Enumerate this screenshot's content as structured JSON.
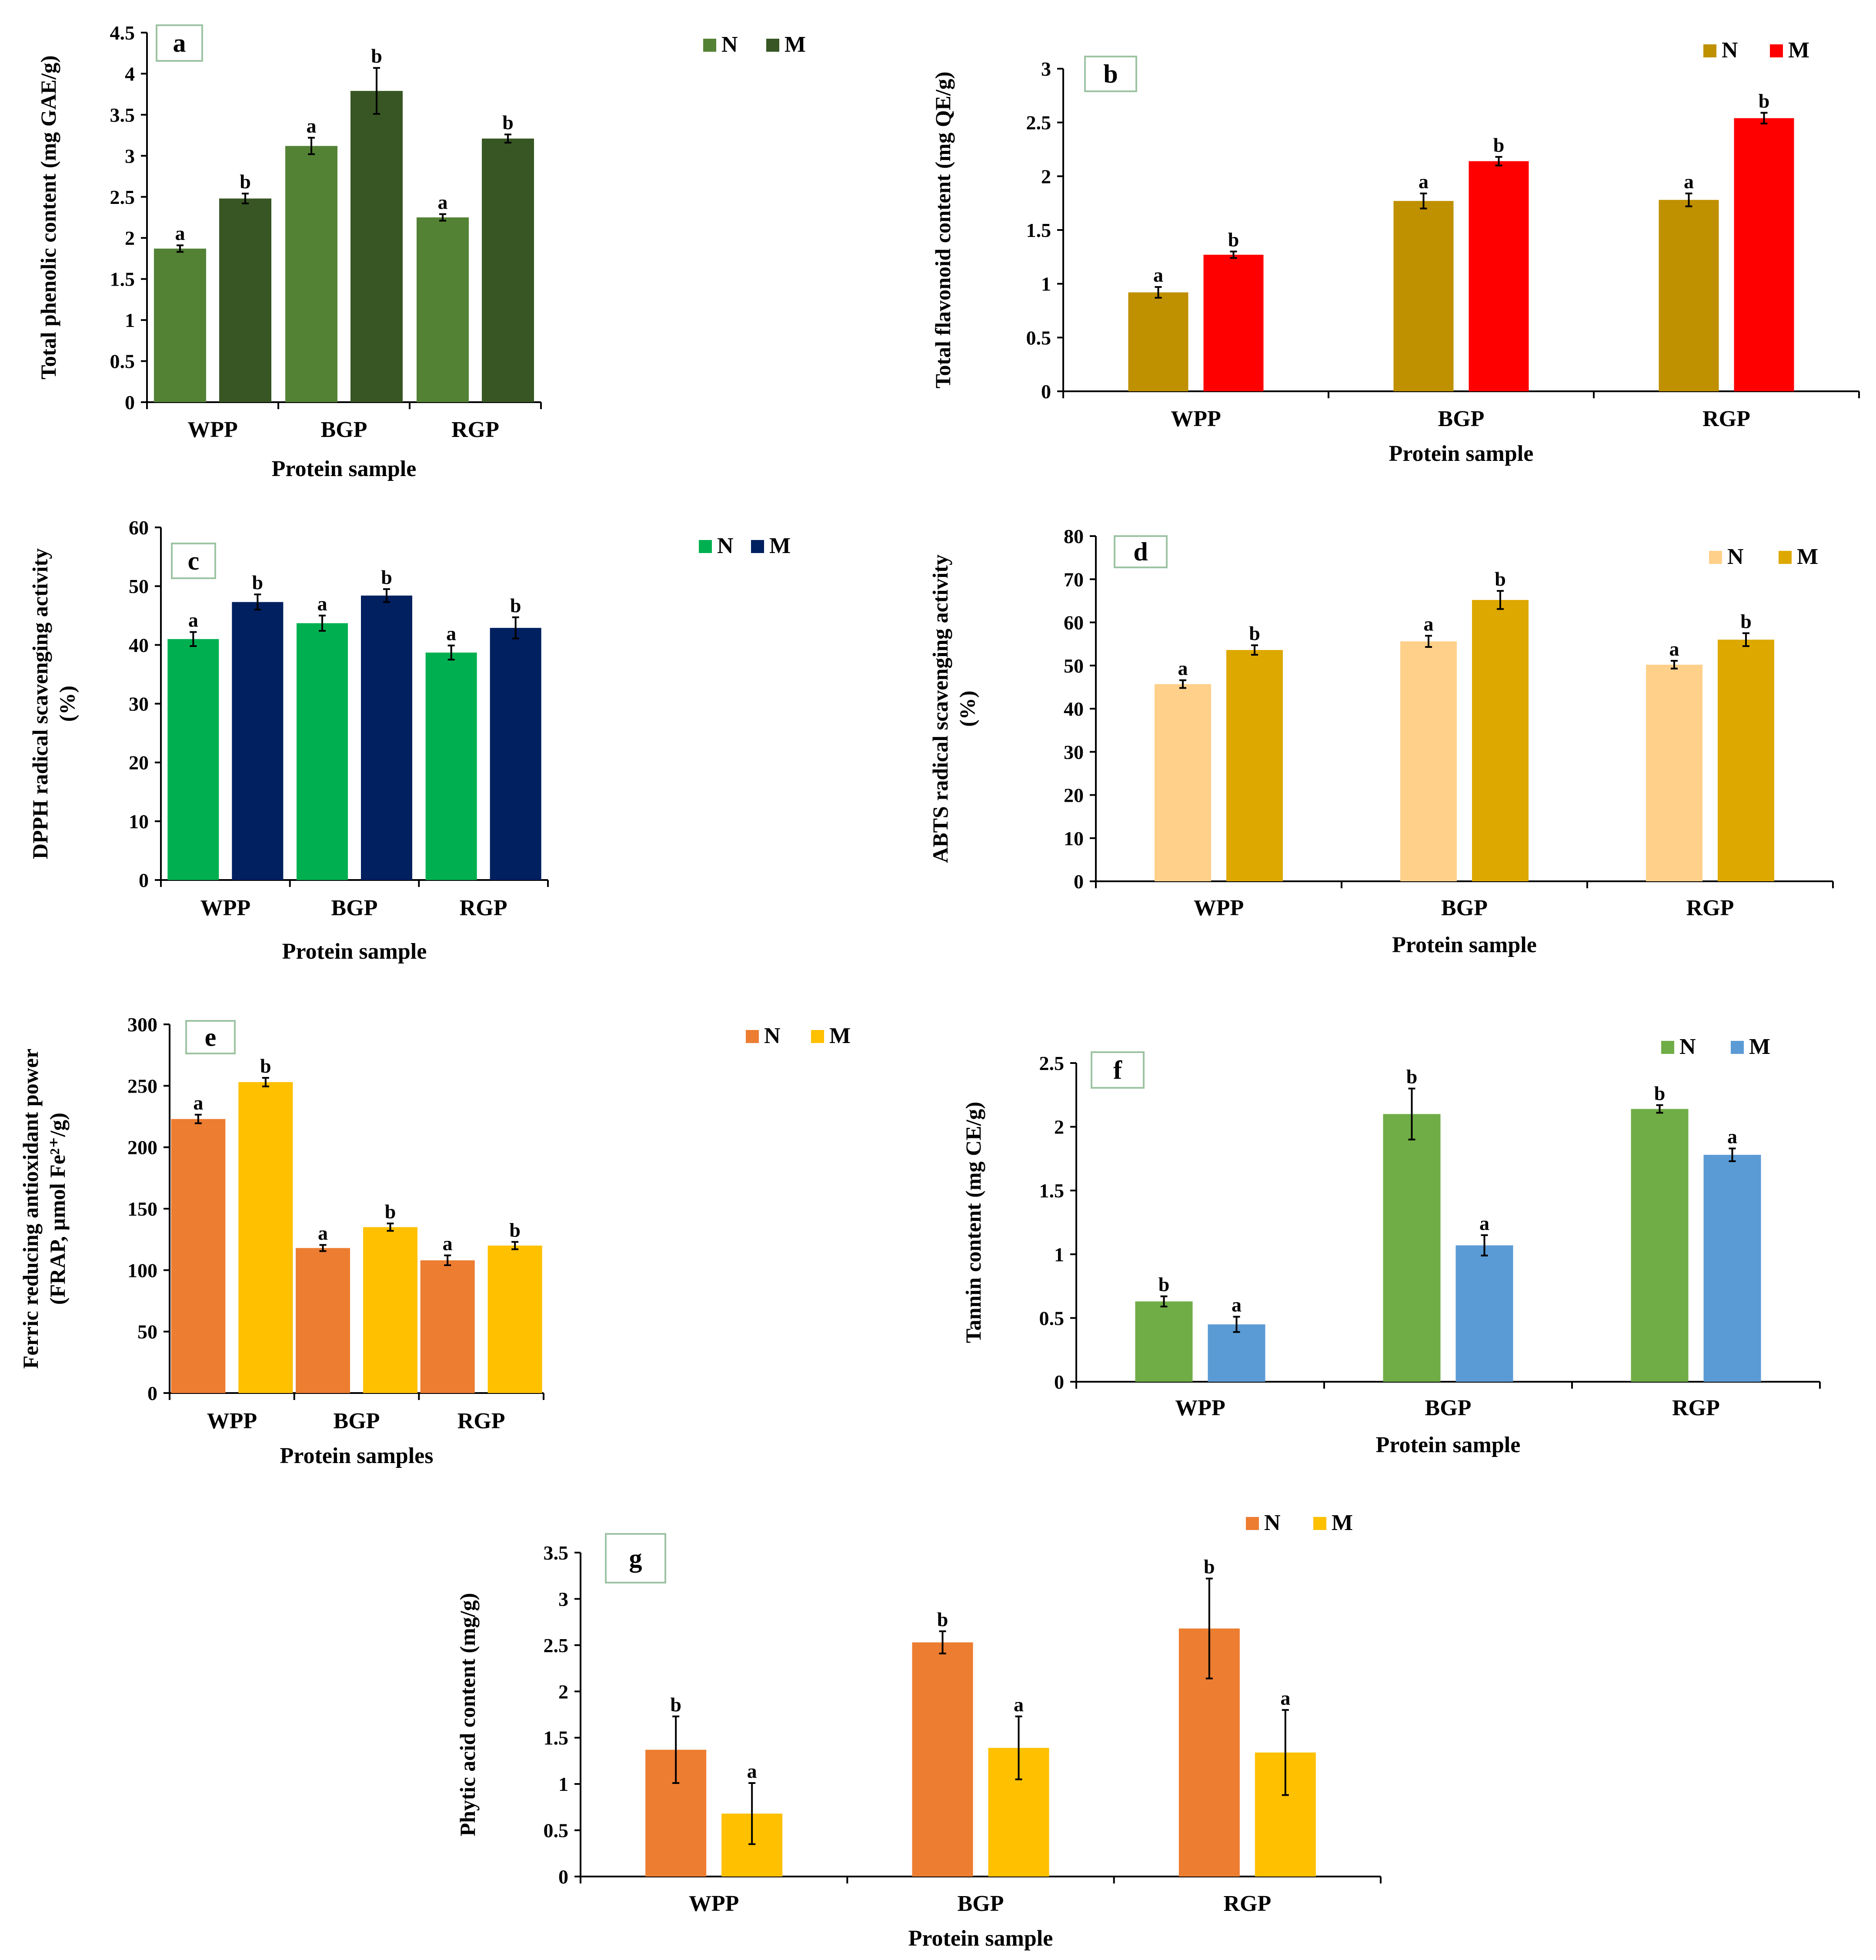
{
  "chart_data": [
    {
      "type": "bar",
      "panel_label": "a",
      "categories": [
        "WPP",
        "BGP",
        "RGP"
      ],
      "series": [
        {
          "name": "N",
          "color": "#548235",
          "values": [
            1.87,
            3.12,
            2.25
          ],
          "errors": [
            0.04,
            0.1,
            0.04
          ],
          "labels": [
            "a",
            "a",
            "a"
          ]
        },
        {
          "name": "M",
          "color": "#375623",
          "values": [
            2.48,
            3.79,
            3.21
          ],
          "errors": [
            0.06,
            0.28,
            0.05
          ],
          "labels": [
            "b",
            "b",
            "b"
          ]
        }
      ],
      "xlabel": "Protein sample",
      "ylabel": [
        "Total phenolic content (mg GAE/g)"
      ],
      "ylim": [
        0,
        4.5
      ],
      "yticks": [
        "0",
        "0.5",
        "1",
        "1.5",
        "2",
        "2.5",
        "3",
        "3.5",
        "4",
        "4.5"
      ],
      "legend_position": "top-right"
    },
    {
      "type": "bar",
      "panel_label": "b",
      "categories": [
        "WPP",
        "BGP",
        "RGP"
      ],
      "series": [
        {
          "name": "N",
          "color": "#BF9000",
          "values": [
            0.92,
            1.77,
            1.78
          ],
          "errors": [
            0.05,
            0.07,
            0.06
          ],
          "labels": [
            "a",
            "a",
            "a"
          ]
        },
        {
          "name": "M",
          "color": "#FF0000",
          "values": [
            1.27,
            2.14,
            2.54
          ],
          "errors": [
            0.03,
            0.04,
            0.05
          ],
          "labels": [
            "b",
            "b",
            "b"
          ]
        }
      ],
      "xlabel": "Protein sample",
      "ylabel": [
        "Total flavonoid content (mg QE/g)"
      ],
      "ylim": [
        0,
        3
      ],
      "yticks": [
        "0",
        "0.5",
        "1",
        "1.5",
        "2",
        "2.5",
        "3"
      ],
      "legend_position": "top-right"
    },
    {
      "type": "bar",
      "panel_label": "c",
      "categories": [
        "WPP",
        "BGP",
        "RGP"
      ],
      "series": [
        {
          "name": "N",
          "color": "#00B050",
          "values": [
            41,
            43.7,
            38.7
          ],
          "errors": [
            1.2,
            1.3,
            1.2
          ],
          "labels": [
            "a",
            "a",
            "a"
          ]
        },
        {
          "name": "M",
          "color": "#002060",
          "values": [
            47.3,
            48.4,
            42.9
          ],
          "errors": [
            1.3,
            1.1,
            1.8
          ],
          "labels": [
            "b",
            "b",
            "b"
          ]
        }
      ],
      "xlabel": "Protein sample",
      "ylabel": [
        "DPPH radical scavenging activity",
        "(%)"
      ],
      "ylim": [
        0,
        60
      ],
      "yticks": [
        "0",
        "10",
        "20",
        "30",
        "40",
        "50",
        "60"
      ],
      "legend_position": "top-right"
    },
    {
      "type": "bar",
      "panel_label": "d",
      "categories": [
        "WPP",
        "BGP",
        "RGP"
      ],
      "series": [
        {
          "name": "N",
          "color": "#FFD08A",
          "values": [
            45.7,
            55.6,
            50.2
          ],
          "errors": [
            0.9,
            1.3,
            0.9
          ],
          "labels": [
            "a",
            "a",
            "a"
          ]
        },
        {
          "name": "M",
          "color": "#DDA800",
          "values": [
            53.6,
            65.2,
            56
          ],
          "errors": [
            1.1,
            2.1,
            1.5
          ],
          "labels": [
            "b",
            "b",
            "b"
          ]
        }
      ],
      "xlabel": "Protein sample",
      "ylabel": [
        "ABTS radical scavenging activity",
        "(%)"
      ],
      "ylim": [
        0,
        80
      ],
      "yticks": [
        "0",
        "10",
        "20",
        "30",
        "40",
        "50",
        "60",
        "70",
        "80"
      ],
      "legend_position": "top-right"
    },
    {
      "type": "bar",
      "panel_label": "e",
      "categories": [
        "WPP",
        "BGP",
        "RGP"
      ],
      "series": [
        {
          "name": "N",
          "color": "#ED7D31",
          "values": [
            223,
            118,
            108
          ],
          "errors": [
            3.5,
            2.5,
            4
          ],
          "labels": [
            "a",
            "a",
            "a"
          ]
        },
        {
          "name": "M",
          "color": "#FFC000",
          "values": [
            253,
            135,
            120
          ],
          "errors": [
            3.5,
            3,
            3
          ],
          "labels": [
            "b",
            "b",
            "b"
          ]
        }
      ],
      "xlabel": "Protein samples",
      "ylabel": [
        "Ferric reducing antioxidant power",
        "(FRAP, µmol Fe²⁺/g)"
      ],
      "ylim": [
        0,
        300
      ],
      "yticks": [
        "0",
        "50",
        "100",
        "150",
        "200",
        "250",
        "300"
      ],
      "legend_position": "top-right"
    },
    {
      "type": "bar",
      "panel_label": "f",
      "categories": [
        "WPP",
        "BGP",
        "RGP"
      ],
      "series": [
        {
          "name": "N",
          "color": "#70AD47",
          "values": [
            0.63,
            2.1,
            2.14
          ],
          "errors": [
            0.04,
            0.2,
            0.03
          ],
          "labels": [
            "b",
            "b",
            "b"
          ]
        },
        {
          "name": "M",
          "color": "#5B9BD5",
          "values": [
            0.45,
            1.07,
            1.78
          ],
          "errors": [
            0.06,
            0.08,
            0.05
          ],
          "labels": [
            "a",
            "a",
            "a"
          ]
        }
      ],
      "xlabel": "Protein sample",
      "ylabel": [
        "Tannin content (mg CE/g)"
      ],
      "ylim": [
        0,
        2.5
      ],
      "yticks": [
        "0",
        "0.5",
        "1",
        "1.5",
        "2",
        "2.5"
      ],
      "legend_position": "top-right"
    },
    {
      "type": "bar",
      "panel_label": "g",
      "categories": [
        "WPP",
        "BGP",
        "RGP"
      ],
      "series": [
        {
          "name": "N",
          "color": "#ED7D31",
          "values": [
            1.37,
            2.53,
            2.68
          ],
          "errors": [
            0.36,
            0.12,
            0.54
          ],
          "labels": [
            "b",
            "b",
            "b"
          ]
        },
        {
          "name": "M",
          "color": "#FFC000",
          "values": [
            0.68,
            1.39,
            1.34
          ],
          "errors": [
            0.33,
            0.34,
            0.46
          ],
          "labels": [
            "a",
            "a",
            "a"
          ]
        }
      ],
      "xlabel": "Protein sample",
      "ylabel": [
        "Phytic acid content (mg/g)"
      ],
      "ylim": [
        0,
        3.5
      ],
      "yticks": [
        "0",
        "0.5",
        "1",
        "1.5",
        "2",
        "2.5",
        "3",
        "3.5"
      ],
      "legend_position": "top-center"
    }
  ]
}
